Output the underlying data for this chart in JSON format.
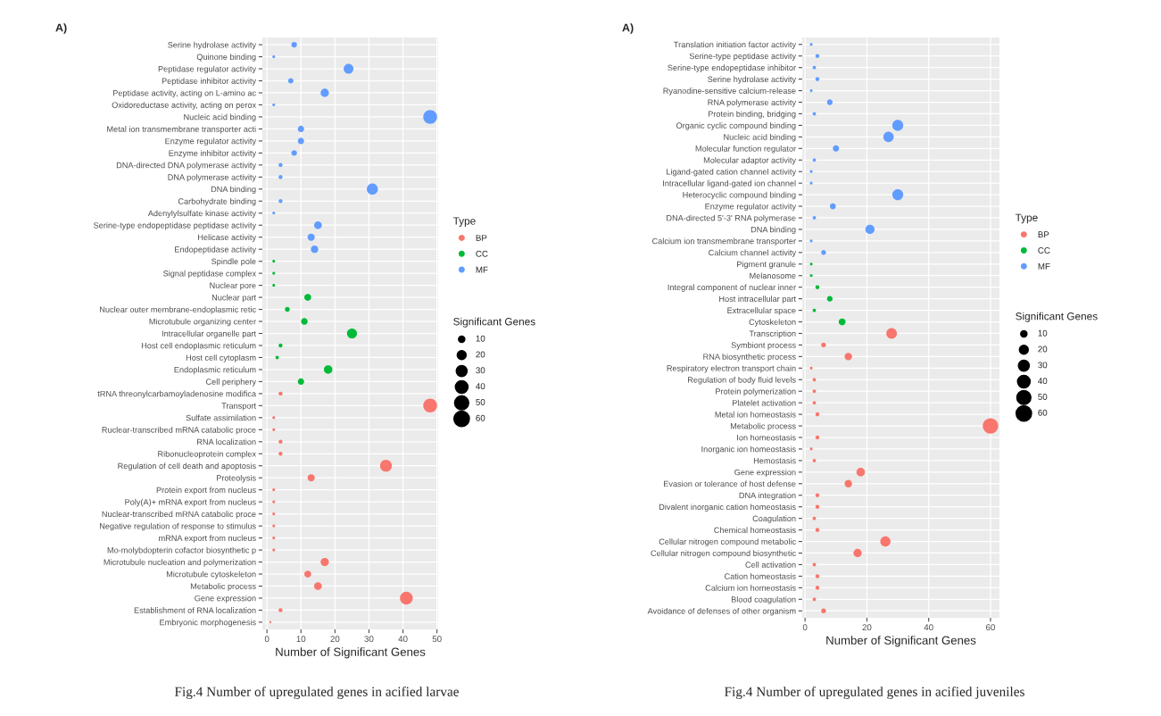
{
  "chart_data": [
    {
      "type": "bubble",
      "orientation": "horizontal",
      "title": "A)",
      "xlabel": "Number of Significant Genes",
      "legend_title": [
        "Type",
        "Significant Genes"
      ],
      "legend": "right",
      "grid": true,
      "marker": "circle",
      "xlim": [
        -1.35,
        50.35
      ],
      "xticks": [
        0,
        10,
        20,
        30,
        40,
        50
      ],
      "size_legend": [
        10,
        20,
        30,
        40,
        50,
        60
      ],
      "annotations": [
        "Fig.4 Number of upregulated genes in acified larvae"
      ],
      "categories": [
        "Serine hydrolase activity",
        "Quinone binding",
        "Peptidase regulator activity",
        "Peptidase inhibitor activity",
        "Peptidase activity, acting on L-amino ac",
        "Oxidoreductase activity, acting on perox",
        "Nucleic acid binding",
        "Metal ion transmembrane transporter acti",
        "Enzyme regulator activity",
        "Enzyme inhibitor activity",
        "DNA-directed DNA polymerase activity",
        "DNA polymerase activity",
        "DNA binding",
        "Carbohydrate binding",
        "Adenylylsulfate kinase activity",
        "Serine-type endopeptidase peptidase activity",
        "Helicase activity",
        "Endopeptidase activity",
        "Spindle pole",
        "Signal peptidase complex",
        "Nuclear pore",
        "Nuclear part",
        "Nuclear outer membrane-endoplasmic retic",
        "Microtubule organizing center",
        "Intracellular organelle part",
        "Host cell endoplasmic reticulum",
        "Host cell cytoplasm",
        "Endoplasmic reticulum",
        "Cell periphery",
        "tRNA threonylcarbamoyladenosine modifica",
        "Transport",
        "Sulfate assimilation",
        "Ruclear-transcribed mRNA catabolic proce",
        "RNA localization",
        "Ribonucleoprotein complex",
        "Regulation of cell death and apoptosis",
        "Proteolysis",
        "Protein export from nucleus",
        "Poly(A)+ mRNA export from nucleus",
        "Nuclear-transcribed mRNA catabolic proce",
        "Negative regulation of response to stimulus",
        "mRNA export from nucleus",
        "Mo-molybdopterin cofactor biosynthetic p",
        "Microtubule nucleation and polymerization",
        "Microtubule cytoskeleton",
        "Metabolic process",
        "Gene expression",
        "Establishment of RNA localization",
        "Embryonic morphogenesis"
      ],
      "series": [
        {
          "name": "BP",
          "color": "#f8766d",
          "values": [
            null,
            null,
            null,
            null,
            null,
            null,
            null,
            null,
            null,
            null,
            null,
            null,
            null,
            null,
            null,
            null,
            null,
            null,
            null,
            null,
            null,
            null,
            null,
            null,
            null,
            null,
            null,
            null,
            null,
            4,
            48,
            2,
            2,
            4,
            4,
            35,
            13,
            2,
            2,
            2,
            2,
            2,
            2,
            17,
            12,
            15,
            41,
            4,
            1
          ],
          "sizes": [
            null,
            null,
            null,
            null,
            null,
            null,
            null,
            null,
            null,
            null,
            null,
            null,
            null,
            null,
            null,
            null,
            null,
            null,
            null,
            null,
            null,
            null,
            null,
            null,
            null,
            null,
            null,
            null,
            null,
            4,
            48,
            2,
            2,
            4,
            4,
            35,
            13,
            2,
            2,
            2,
            2,
            2,
            2,
            17,
            12,
            15,
            41,
            4,
            1
          ]
        },
        {
          "name": "CC",
          "color": "#00ba38",
          "values": [
            null,
            null,
            null,
            null,
            null,
            null,
            null,
            null,
            null,
            null,
            null,
            null,
            null,
            null,
            null,
            null,
            null,
            null,
            2,
            2,
            2,
            12,
            6,
            11,
            25,
            4,
            3,
            18,
            10,
            null,
            null,
            null,
            null,
            null,
            null,
            null,
            null,
            null,
            null,
            null,
            null,
            null,
            null,
            null,
            null,
            null,
            null,
            null,
            null
          ],
          "sizes": [
            null,
            null,
            null,
            null,
            null,
            null,
            null,
            null,
            null,
            null,
            null,
            null,
            null,
            null,
            null,
            null,
            null,
            null,
            2,
            2,
            2,
            12,
            6,
            11,
            25,
            4,
            3,
            18,
            10,
            null,
            null,
            null,
            null,
            null,
            null,
            null,
            null,
            null,
            null,
            null,
            null,
            null,
            null,
            null,
            null,
            null,
            null,
            null,
            null
          ]
        },
        {
          "name": "MF",
          "color": "#619cff",
          "values": [
            8,
            2,
            24,
            7,
            17,
            2,
            48,
            10,
            10,
            8,
            4,
            4,
            31,
            4,
            2,
            15,
            13,
            14,
            null,
            null,
            null,
            null,
            null,
            null,
            null,
            null,
            null,
            null,
            null,
            null,
            null,
            null,
            null,
            null,
            null,
            null,
            null,
            null,
            null,
            null,
            null,
            null,
            null,
            null,
            null,
            null,
            null,
            null,
            null
          ],
          "sizes": [
            8,
            2,
            24,
            7,
            17,
            2,
            48,
            10,
            10,
            8,
            4,
            4,
            31,
            4,
            2,
            15,
            13,
            14,
            null,
            null,
            null,
            null,
            null,
            null,
            null,
            null,
            null,
            null,
            null,
            null,
            null,
            null,
            null,
            null,
            null,
            null,
            null,
            null,
            null,
            null,
            null,
            null,
            null,
            null,
            null,
            null,
            null,
            null,
            null
          ]
        }
      ]
    },
    {
      "type": "bubble",
      "orientation": "horizontal",
      "title": "A)",
      "xlabel": "Number of Significant Genes",
      "legend_title": [
        "Type",
        "Significant Genes"
      ],
      "legend": "right",
      "grid": true,
      "marker": "circle",
      "xlim": [
        -0.9,
        62.9
      ],
      "xticks": [
        0,
        20,
        40,
        60
      ],
      "size_legend": [
        10,
        20,
        30,
        40,
        50,
        60
      ],
      "annotations": [
        "Fig.4 Number of upregulated genes in acified juveniles"
      ],
      "categories": [
        "Translation initiation factor activity",
        "Serine-type peptidase activity",
        "Serine-type endopeptidase inhibitor",
        "Serine hydrolase activity",
        "Ryanodine-sensitive calcium-release",
        "RNA polymerase activity",
        "Protein binding, bridging",
        "Organic cyclic compound binding",
        "Nucleic acid binding",
        "Molecular function regulator",
        "Molecular adaptor activity",
        "Ligand-gated cation channel activity",
        "Intracellular ligand-gated ion channel",
        "Heterocyclic compound binding",
        "Enzyme regulator activity",
        "DNA-directed 5'-3' RNA polymerase",
        "DNA binding",
        "Calcium ion transmembrane transporter",
        "Calcium channel activity",
        "Pigment granule",
        "Melanosome",
        "Integral component of nuclear inner",
        "Host intracellular part",
        "Extracellular space",
        "Cytoskeleton",
        "Transcription",
        "Symbiont process",
        "RNA biosynthetic process",
        "Respiratory electron transport chain",
        "Regulation of body fluid levels",
        "Protein polymerization",
        "Platelet activation",
        "Metal ion homeostasis",
        "Metabolic process",
        "Ion homeostasis",
        "Inorganic ion homeostasis",
        "Hemostasis",
        "Gene expression",
        "Evasion or tolerance of host defense",
        "DNA integration",
        "Divalent inorganic cation homeostasis",
        "Coagulation",
        "Chemical homeostasis",
        "Cellular nitrogen compound metabolic",
        "Cellular nitrogen compound biosynthetic",
        "Cell activation",
        "Cation homeostasis",
        "Calcium ion homeostasis",
        "Blood coagulation",
        "Avoidance of defenses of other organism"
      ],
      "series": [
        {
          "name": "BP",
          "color": "#f8766d",
          "values": [
            null,
            null,
            null,
            null,
            null,
            null,
            null,
            null,
            null,
            null,
            null,
            null,
            null,
            null,
            null,
            null,
            null,
            null,
            null,
            null,
            null,
            null,
            null,
            null,
            null,
            28,
            6,
            14,
            2,
            3,
            3,
            3,
            4,
            60,
            4,
            2,
            3,
            18,
            14,
            4,
            4,
            3,
            4,
            26,
            17,
            3,
            4,
            4,
            3,
            6
          ],
          "sizes": [
            null,
            null,
            null,
            null,
            null,
            null,
            null,
            null,
            null,
            null,
            null,
            null,
            null,
            null,
            null,
            null,
            null,
            null,
            null,
            null,
            null,
            null,
            null,
            null,
            null,
            28,
            6,
            14,
            2,
            3,
            3,
            3,
            4,
            60,
            4,
            2,
            3,
            18,
            14,
            4,
            4,
            3,
            4,
            26,
            17,
            3,
            4,
            4,
            3,
            6
          ]
        },
        {
          "name": "CC",
          "color": "#00ba38",
          "values": [
            null,
            null,
            null,
            null,
            null,
            null,
            null,
            null,
            null,
            null,
            null,
            null,
            null,
            null,
            null,
            null,
            null,
            null,
            null,
            2,
            2,
            4,
            8,
            3,
            12,
            null,
            null,
            null,
            null,
            null,
            null,
            null,
            null,
            null,
            null,
            null,
            null,
            null,
            null,
            null,
            null,
            null,
            null,
            null,
            null,
            null,
            null,
            null,
            null,
            null
          ],
          "sizes": [
            null,
            null,
            null,
            null,
            null,
            null,
            null,
            null,
            null,
            null,
            null,
            null,
            null,
            null,
            null,
            null,
            null,
            null,
            null,
            2,
            2,
            4,
            8,
            3,
            12,
            null,
            null,
            null,
            null,
            null,
            null,
            null,
            null,
            null,
            null,
            null,
            null,
            null,
            null,
            null,
            null,
            null,
            null,
            null,
            null,
            null,
            null,
            null,
            null,
            null
          ]
        },
        {
          "name": "MF",
          "color": "#619cff",
          "values": [
            2,
            4,
            3,
            4,
            2,
            8,
            3,
            30,
            27,
            10,
            3,
            2,
            2,
            30,
            9,
            3,
            21,
            2,
            6,
            null,
            null,
            null,
            null,
            null,
            null,
            null,
            null,
            null,
            null,
            null,
            null,
            null,
            null,
            null,
            null,
            null,
            null,
            null,
            null,
            null,
            null,
            null,
            null,
            null,
            null,
            null,
            null,
            null,
            null,
            null
          ],
          "sizes": [
            2,
            4,
            3,
            4,
            2,
            8,
            3,
            30,
            27,
            10,
            3,
            2,
            2,
            30,
            9,
            3,
            21,
            2,
            6,
            null,
            null,
            null,
            null,
            null,
            null,
            null,
            null,
            null,
            null,
            null,
            null,
            null,
            null,
            null,
            null,
            null,
            null,
            null,
            null,
            null,
            null,
            null,
            null,
            null,
            null,
            null,
            null,
            null,
            null,
            null
          ]
        }
      ]
    }
  ]
}
